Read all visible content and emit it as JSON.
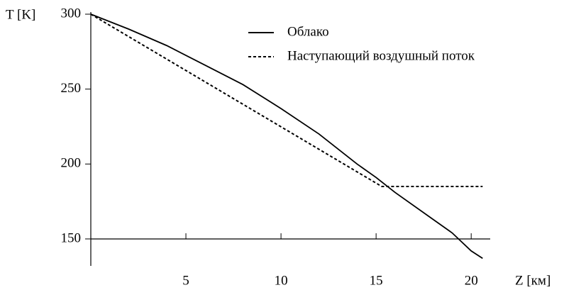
{
  "chart_data": {
    "type": "line",
    "x_label": "Z [км]",
    "y_label": "T [K]",
    "xlim": [
      0,
      21
    ],
    "ylim": [
      132,
      300
    ],
    "xticks": [
      5,
      10,
      15,
      20
    ],
    "yticks": [
      150,
      200,
      250,
      300
    ],
    "legend": "top-right",
    "series": [
      {
        "name": "Облако",
        "color": "#000000",
        "style": "solid",
        "x": [
          0,
          2,
          4,
          6,
          8,
          10,
          12,
          14,
          15,
          16,
          18,
          19,
          20,
          20.6
        ],
        "values": [
          300,
          290,
          279,
          266,
          253,
          237,
          220,
          200,
          191,
          181,
          163,
          154,
          142,
          137
        ]
      },
      {
        "name": "Наступающий воздушный поток",
        "color": "#000000",
        "style": "dashed",
        "x": [
          0,
          15.3,
          20.6
        ],
        "values": [
          300,
          185,
          185
        ]
      }
    ]
  }
}
